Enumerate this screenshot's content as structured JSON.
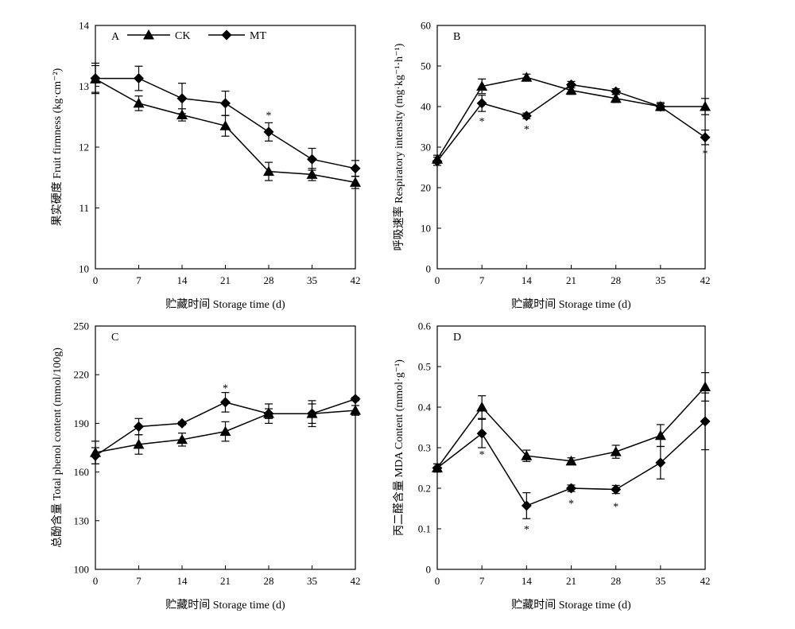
{
  "chart_data": [
    {
      "type": "line",
      "panel_label": "A",
      "title": "",
      "xlabel": "贮藏时间 Storage time (d)",
      "ylabel": "果实硬度 Fruit firmness (kg·cm⁻²)",
      "x": [
        0,
        7,
        14,
        21,
        28,
        35,
        42
      ],
      "xticks": [
        "0",
        "7",
        "14",
        "21",
        "28",
        "35",
        "42"
      ],
      "ylim": [
        10,
        14
      ],
      "yticks": [
        10,
        11,
        12,
        13,
        14
      ],
      "ytick_labels": [
        "10",
        "11",
        "12",
        "13",
        "14"
      ],
      "series": [
        {
          "name": "CK",
          "marker": "triangle",
          "values": [
            13.12,
            12.72,
            12.53,
            12.35,
            11.6,
            11.55,
            11.42
          ],
          "errors": [
            0.22,
            0.12,
            0.1,
            0.17,
            0.15,
            0.1,
            0.1
          ]
        },
        {
          "name": "MT",
          "marker": "diamond",
          "values": [
            13.13,
            13.13,
            12.8,
            12.72,
            12.25,
            11.8,
            11.65
          ],
          "errors": [
            0.25,
            0.2,
            0.25,
            0.2,
            0.15,
            0.18,
            0.13
          ]
        }
      ],
      "significance_marks": [
        {
          "x": 28,
          "text": "*",
          "y": 12.53
        }
      ],
      "legend": {
        "placement": "top",
        "entries": [
          "CK",
          "MT"
        ]
      }
    },
    {
      "type": "line",
      "panel_label": "B",
      "title": "",
      "xlabel": "贮藏时间 Storage time (d)",
      "ylabel": "呼吸速率 Respiratory intensity (mg·kg⁻¹·h⁻¹)",
      "x": [
        0,
        7,
        14,
        21,
        28,
        35,
        42
      ],
      "xticks": [
        "0",
        "7",
        "14",
        "21",
        "28",
        "35",
        "42"
      ],
      "ylim": [
        0,
        60
      ],
      "yticks": [
        0,
        10,
        20,
        30,
        40,
        50,
        60
      ],
      "ytick_labels": [
        "0",
        "10",
        "20",
        "30",
        "40",
        "50",
        "60"
      ],
      "series": [
        {
          "name": "CK",
          "marker": "triangle",
          "values": [
            27,
            45,
            47.2,
            44,
            42,
            40,
            40
          ],
          "errors": [
            1,
            1.8,
            0.8,
            1,
            1,
            1,
            2
          ]
        },
        {
          "name": "MT",
          "marker": "diamond",
          "values": [
            26.5,
            40.8,
            37.7,
            45.4,
            43.7,
            40,
            32.4
          ],
          "errors": [
            1,
            2,
            0.7,
            0.8,
            0.7,
            0.7,
            1.8
          ]
        }
      ],
      "significance_marks": [
        {
          "x": 7,
          "text": "*",
          "y": 36.5
        },
        {
          "x": 14,
          "text": "*",
          "y": 34.5
        },
        {
          "x": 42,
          "text": "*",
          "y": 28.5
        }
      ]
    },
    {
      "type": "line",
      "panel_label": "C",
      "title": "",
      "xlabel": "贮藏时间 Storage time (d)",
      "ylabel": "总酚含量 Total phenol content (mmol/100g)",
      "x": [
        0,
        7,
        14,
        21,
        28,
        35,
        42
      ],
      "xticks": [
        "0",
        "7",
        "14",
        "21",
        "28",
        "35",
        "42"
      ],
      "ylim": [
        100,
        250
      ],
      "yticks": [
        100,
        130,
        160,
        190,
        220,
        250
      ],
      "ytick_labels": [
        "100",
        "130",
        "160",
        "190",
        "220",
        "250"
      ],
      "series": [
        {
          "name": "CK",
          "marker": "triangle",
          "values": [
            172,
            177,
            180,
            185,
            196,
            196,
            198
          ],
          "errors": [
            7,
            6,
            4,
            6,
            6,
            6,
            3
          ]
        },
        {
          "name": "MT",
          "marker": "diamond",
          "values": [
            170,
            188,
            190,
            203,
            196,
            196,
            205
          ],
          "errors": [
            5,
            5,
            1,
            6,
            3,
            8,
            1
          ]
        }
      ],
      "significance_marks": [
        {
          "x": 21,
          "text": "*",
          "y": 212
        }
      ]
    },
    {
      "type": "line",
      "panel_label": "D",
      "title": "",
      "xlabel": "贮藏时间 Storage time (d)",
      "ylabel": "丙二醛含量 MDA Content (mmol·g⁻¹)",
      "x": [
        0,
        7,
        14,
        21,
        28,
        35,
        42
      ],
      "xticks": [
        "0",
        "7",
        "14",
        "21",
        "28",
        "35",
        "42"
      ],
      "ylim": [
        0,
        0.6
      ],
      "yticks": [
        0,
        0.1,
        0.2,
        0.3,
        0.4,
        0.5,
        0.6
      ],
      "ytick_labels": [
        "0",
        "0.1",
        "0.2",
        "0.3",
        "0.4",
        "0.5",
        "0.6"
      ],
      "series": [
        {
          "name": "CK",
          "marker": "triangle",
          "values": [
            0.25,
            0.4,
            0.28,
            0.267,
            0.29,
            0.33,
            0.45
          ],
          "errors": [
            0.01,
            0.028,
            0.014,
            0.008,
            0.016,
            0.027,
            0.035
          ]
        },
        {
          "name": "MT",
          "marker": "diamond",
          "values": [
            0.25,
            0.335,
            0.157,
            0.2,
            0.197,
            0.263,
            0.365
          ],
          "errors": [
            0.01,
            0.035,
            0.032,
            0.008,
            0.01,
            0.04,
            0.07
          ]
        }
      ],
      "significance_marks": [
        {
          "x": 7,
          "text": "*",
          "y": 0.284
        },
        {
          "x": 14,
          "text": "*",
          "y": 0.1
        },
        {
          "x": 21,
          "text": "*",
          "y": 0.164
        },
        {
          "x": 28,
          "text": "*",
          "y": 0.156
        }
      ]
    }
  ]
}
